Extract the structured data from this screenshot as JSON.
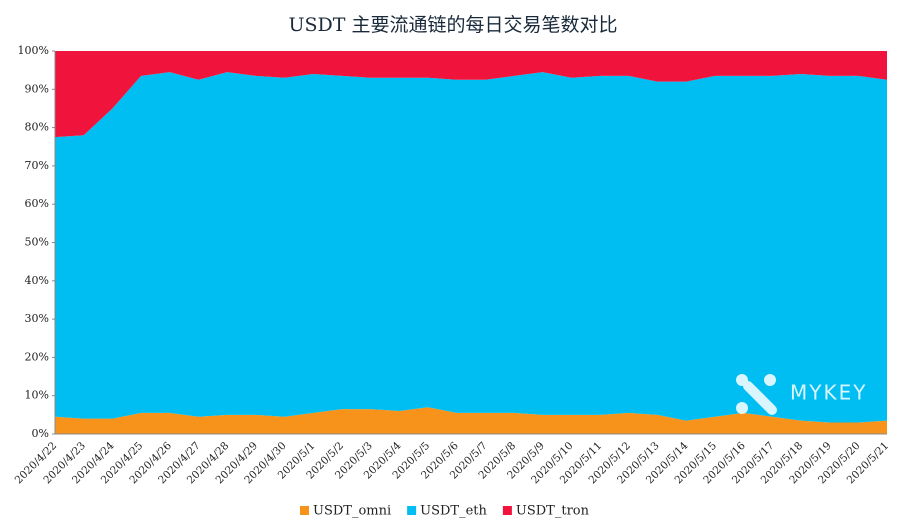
{
  "chart_data": {
    "type": "stacked_area_percent",
    "title": "USDT 主要流通链的每日交易笔数对比",
    "categories": [
      "2020/4/22",
      "2020/4/23",
      "2020/4/24",
      "2020/4/25",
      "2020/4/26",
      "2020/4/27",
      "2020/4/28",
      "2020/4/29",
      "2020/4/30",
      "2020/5/1",
      "2020/5/2",
      "2020/5/3",
      "2020/5/4",
      "2020/5/5",
      "2020/5/6",
      "2020/5/7",
      "2020/5/8",
      "2020/5/9",
      "2020/5/10",
      "2020/5/11",
      "2020/5/12",
      "2020/5/13",
      "2020/5/14",
      "2020/5/15",
      "2020/5/16",
      "2020/5/17",
      "2020/5/18",
      "2020/5/19",
      "2020/5/20",
      "2020/5/21"
    ],
    "series": [
      {
        "name": "USDT_omni",
        "color": "#f7931a",
        "values": [
          4.5,
          4,
          4,
          5.5,
          5.5,
          4.5,
          5,
          5,
          4.5,
          5.5,
          6.5,
          6.5,
          6,
          7,
          5.5,
          5.5,
          5.5,
          5,
          5,
          5,
          5.5,
          5,
          3.5,
          4.5,
          5.5,
          4.5,
          3.5,
          3,
          3,
          3.5
        ]
      },
      {
        "name": "USDT_eth",
        "color": "#00bdf2",
        "values": [
          73,
          74,
          81,
          88,
          89,
          88,
          89.5,
          88.5,
          88.5,
          88.5,
          87,
          86.5,
          87,
          86,
          87,
          87,
          88,
          89.5,
          88,
          88.5,
          88,
          87,
          88.5,
          89,
          88,
          89,
          90.5,
          90.5,
          90.5,
          89
        ]
      },
      {
        "name": "USDT_tron",
        "color": "#f0143c",
        "values": [
          22.5,
          22,
          15,
          6.5,
          5.5,
          7.5,
          5.5,
          6.5,
          7,
          6,
          6.5,
          7,
          7,
          7,
          7.5,
          7.5,
          6.5,
          5.5,
          7,
          6.5,
          6.5,
          8,
          8,
          6.5,
          6.5,
          6.5,
          6,
          6.5,
          6.5,
          7.5
        ]
      }
    ],
    "ylim": [
      0,
      100
    ],
    "yticks": [
      {
        "value": 0,
        "label": "0%"
      },
      {
        "value": 10,
        "label": "10%"
      },
      {
        "value": 20,
        "label": "20%"
      },
      {
        "value": 30,
        "label": "30%"
      },
      {
        "value": 40,
        "label": "40%"
      },
      {
        "value": 50,
        "label": "50%"
      },
      {
        "value": 60,
        "label": "60%"
      },
      {
        "value": 70,
        "label": "70%"
      },
      {
        "value": 80,
        "label": "80%"
      },
      {
        "value": 90,
        "label": "90%"
      },
      {
        "value": 100,
        "label": "100%"
      }
    ],
    "legend": "bottom",
    "watermark": "MYKEY"
  }
}
